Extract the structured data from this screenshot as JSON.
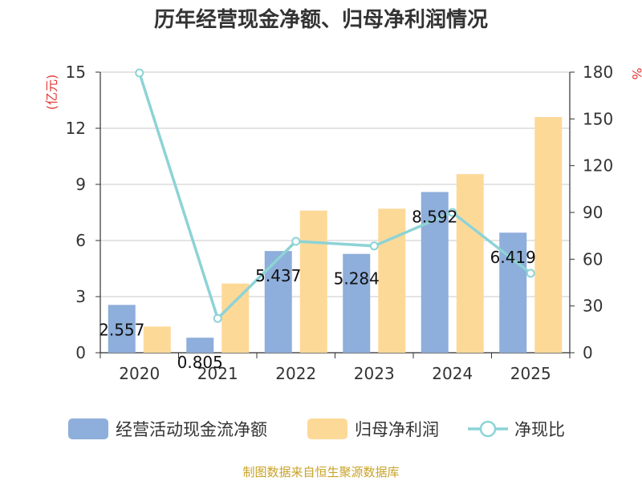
{
  "chart_data": {
    "type": "bar",
    "title": "历年经营现金净额、归母净利润情况",
    "categories": [
      "2020",
      "2021",
      "2022",
      "2023",
      "2024",
      "2025"
    ],
    "series": [
      {
        "name": "经营活动现金流净额",
        "type": "bar",
        "axis": "left",
        "color": "#8eaedb",
        "values": [
          2.557,
          0.805,
          5.437,
          5.284,
          8.592,
          6.419
        ],
        "labels": [
          "2.557",
          "0.805",
          "5.437",
          "5.284",
          "8.592",
          "6.419"
        ]
      },
      {
        "name": "归母净利润",
        "type": "bar",
        "axis": "left",
        "color": "#fdd998",
        "values": [
          1.4,
          3.7,
          7.6,
          7.7,
          9.55,
          12.6
        ]
      },
      {
        "name": "净现比",
        "type": "line",
        "axis": "right",
        "color": "#8dd3d6",
        "values": [
          179.5,
          22,
          71.5,
          68.5,
          90,
          51
        ]
      }
    ],
    "y_left": {
      "label": "(亿元)",
      "ylim": [
        0,
        15
      ],
      "ticks": [
        "0",
        "3",
        "6",
        "9",
        "12",
        "15"
      ]
    },
    "y_right": {
      "label": "%",
      "ylim": [
        0,
        180
      ],
      "ticks": [
        "0",
        "30",
        "60",
        "90",
        "120",
        "150",
        "180"
      ]
    },
    "grid": true,
    "legend": "bottom"
  },
  "source": "制图数据来自恒生聚源数据库"
}
